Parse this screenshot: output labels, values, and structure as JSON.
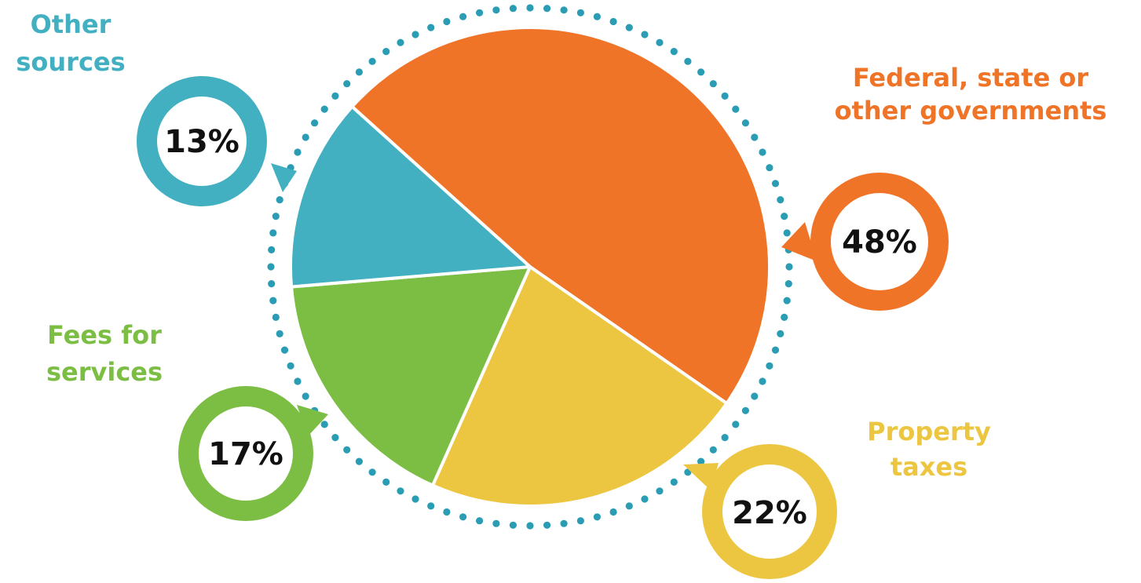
{
  "chart_data": {
    "type": "pie",
    "slices": [
      {
        "label": "Federal, state or other governments",
        "value": 48,
        "percent_label": "48%",
        "color": "#EF7427"
      },
      {
        "label": "Property taxes",
        "value": 22,
        "percent_label": "22%",
        "color": "#ECC641"
      },
      {
        "label": "Fees for services",
        "value": 17,
        "percent_label": "17%",
        "color": "#7BBE43"
      },
      {
        "label": "Other sources",
        "value": 13,
        "percent_label": "13%",
        "color": "#42B0C1"
      }
    ],
    "dotted_ring_color": "#2A9DB5"
  }
}
